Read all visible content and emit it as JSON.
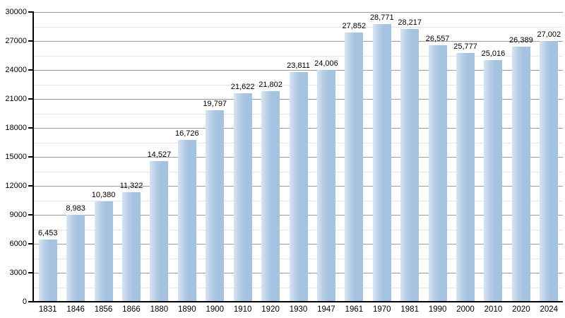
{
  "chart_data": {
    "type": "bar",
    "title": "",
    "xlabel": "",
    "ylabel": "",
    "categories": [
      "1831",
      "1846",
      "1856",
      "1866",
      "1880",
      "1890",
      "1900",
      "1910",
      "1920",
      "1930",
      "1947",
      "1961",
      "1970",
      "1981",
      "1990",
      "2000",
      "2010",
      "2020",
      "2024"
    ],
    "values": [
      6453,
      8983,
      10380,
      11322,
      14527,
      16726,
      19797,
      21622,
      21802,
      23811,
      24006,
      27852,
      28771,
      28217,
      26557,
      25777,
      25016,
      26389,
      27002
    ],
    "value_labels": [
      "6,453",
      "8,983",
      "10,380",
      "11,322",
      "14,527",
      "16,726",
      "19,797",
      "21,622",
      "21,802",
      "23,811",
      "24,006",
      "27,852",
      "28,771",
      "28,217",
      "26,557",
      "25,777",
      "25,016",
      "26,389",
      "27,002"
    ],
    "ylim": [
      0,
      30000
    ],
    "y_major_step": 3000,
    "y_minor_step": 1500,
    "y_tick_labels": [
      "0",
      "3000",
      "6000",
      "9000",
      "12000",
      "15000",
      "18000",
      "21000",
      "24000",
      "27000",
      "30000"
    ],
    "grid": "major-and-minor-horizontal",
    "legend": "none",
    "colors": {
      "bar_main": "#a5c3e0",
      "bar_light_edge": "#d8e4f1",
      "gridline_major": "#9c9c9c",
      "gridline_minor": "#e4e4e4",
      "axis": "#000000",
      "text": "#000000",
      "background": "#ffffff"
    }
  }
}
